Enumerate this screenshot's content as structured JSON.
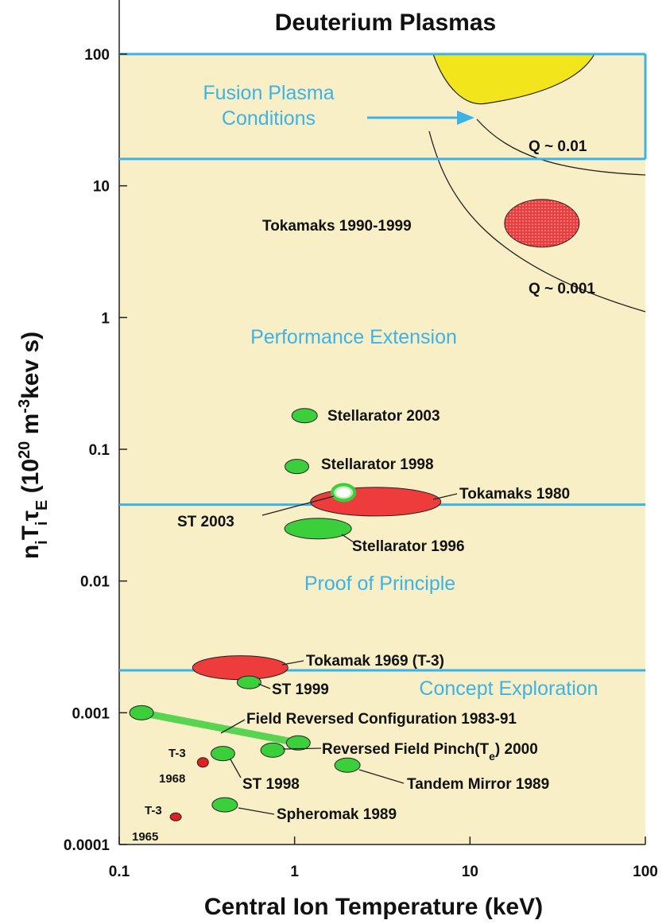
{
  "chart_data": {
    "type": "scatter",
    "title": "Deuterium Plasmas",
    "xlabel": "Central Ion Temperature (keV)",
    "ylabel": [
      "n",
      "i",
      "T",
      "i",
      "τ",
      "E",
      " (10",
      "20",
      " m",
      "-3",
      "kev s)"
    ],
    "xscale": "log",
    "yscale": "log",
    "xlim": [
      0.1,
      100
    ],
    "ylim": [
      0.0001,
      100
    ],
    "xticks": [
      0.1,
      1,
      10,
      100
    ],
    "yticks": [
      0.0001,
      0.001,
      0.01,
      0.1,
      1,
      10,
      100
    ],
    "boundaries": [
      100,
      16,
      0.038,
      0.0021
    ],
    "regions": [
      [
        "Fusion Plasma",
        "Conditions"
      ],
      "Performance Extension",
      "Proof of Principle",
      "Concept Exploration"
    ],
    "curves": [
      "Q ~ 0.01",
      "Q ~ 0.001"
    ],
    "series": [
      {
        "name": "Tokamaks 1990-1999",
        "color": "#ee3b3b",
        "x": [
          25.7
        ],
        "y": [
          5.2
        ]
      },
      {
        "name": "Stellarator  2003",
        "color": "#3ccf3c",
        "x": [
          1.14
        ],
        "y": [
          0.18
        ]
      },
      {
        "name": "Stellarator  1998",
        "color": "#3ccf3c",
        "x": [
          1.03
        ],
        "y": [
          0.074
        ]
      },
      {
        "name": "Tokamaks 1980",
        "color": "#ee3b3b",
        "x": [
          2.9
        ],
        "y": [
          0.04
        ]
      },
      {
        "name": "ST 2003",
        "color": "#b8f0b0",
        "x": [
          1.9
        ],
        "y": [
          0.047
        ]
      },
      {
        "name": "Stellarator  1996",
        "color": "#3ccf3c",
        "x": [
          1.36
        ],
        "y": [
          0.025
        ]
      },
      {
        "name": "Tokamak  1969 (T-3)",
        "color": "#ee3b3b",
        "x": [
          0.49
        ],
        "y": [
          0.0022
        ]
      },
      {
        "name": "ST  1999",
        "color": "#3ccf3c",
        "x": [
          0.55
        ],
        "y": [
          0.0017
        ]
      },
      {
        "name": "Field Reversed Configuration 1983-91",
        "color": "#3ccf3c",
        "x": [
          0.134,
          1.05
        ],
        "y": [
          0.001,
          0.00059
        ]
      },
      {
        "name": [
          "Reversed Field Pinch(T",
          "e",
          ")  2000"
        ],
        "color": "#3ccf3c",
        "x": [
          0.75
        ],
        "y": [
          0.00052
        ]
      },
      {
        "name": "ST  1998",
        "color": "#3ccf3c",
        "x": [
          0.39
        ],
        "y": [
          0.00049
        ]
      },
      {
        "name": [
          "T-3",
          "1968"
        ],
        "color": "#dd2222",
        "x": [
          0.3
        ],
        "y": [
          0.00042
        ]
      },
      {
        "name": "Tandem Mirror 1989",
        "color": "#3ccf3c",
        "x": [
          2.0
        ],
        "y": [
          0.0004
        ]
      },
      {
        "name": "Spheromak 1989",
        "color": "#3ccf3c",
        "x": [
          0.4
        ],
        "y": [
          0.0002
        ]
      },
      {
        "name": [
          "T-3",
          "1965"
        ],
        "color": "#dd2222",
        "x": [
          0.21
        ],
        "y": [
          0.000162
        ]
      }
    ]
  }
}
